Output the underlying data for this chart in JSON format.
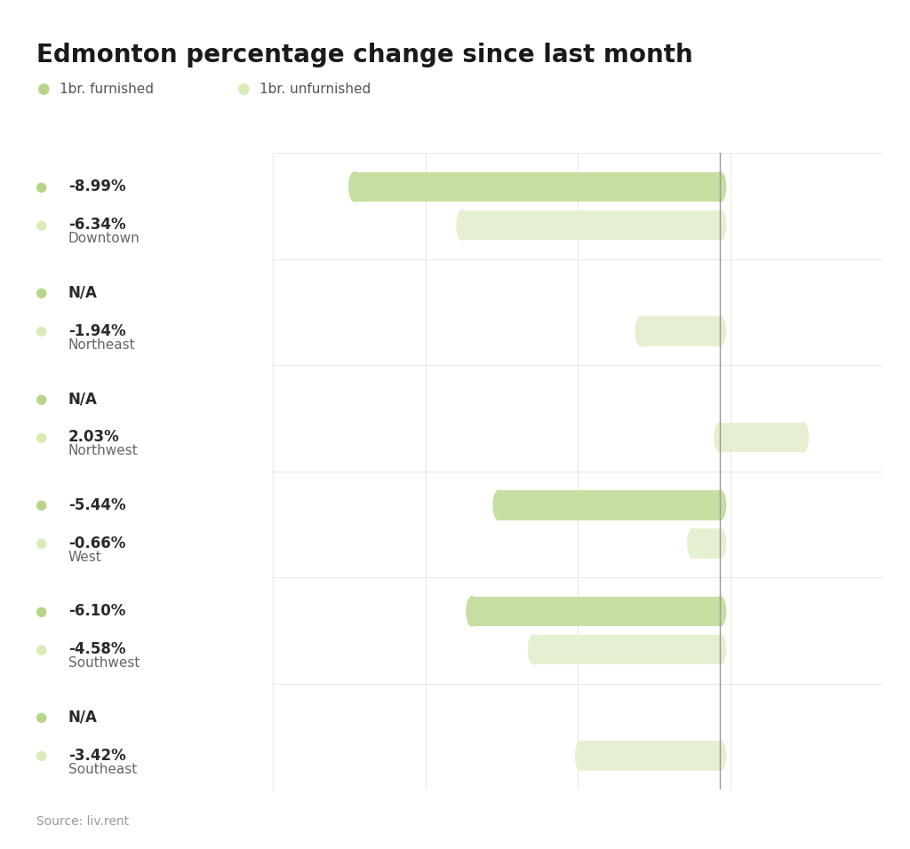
{
  "title": "Edmonton percentage change since last month",
  "source": "Source: liv.rent",
  "legend": [
    {
      "label": "1br. furnished",
      "color": "#b8d48a"
    },
    {
      "label": "1br. unfurnished",
      "color": "#e0ecc4"
    }
  ],
  "categories": [
    "Downtown",
    "Northeast",
    "Northwest",
    "West",
    "Southwest",
    "Southeast"
  ],
  "furnished": [
    -8.99,
    null,
    null,
    -5.44,
    -6.1,
    null
  ],
  "unfurnished": [
    -6.34,
    -1.94,
    2.03,
    -0.66,
    -4.58,
    -3.42
  ],
  "furnished_labels": [
    "-8.99%",
    "N/A",
    "N/A",
    "-5.44%",
    "-6.10%",
    "N/A"
  ],
  "unfurnished_labels": [
    "-6.34%",
    "-1.94%",
    "2.03%",
    "-0.66%",
    "-4.58%",
    "-3.42%"
  ],
  "bar_color_furnished": "#c5dfa0",
  "bar_color_unfurnished": "#e5f0d0",
  "background_color": "#ffffff",
  "grid_color": "#e8e8e8",
  "text_color_bold": "#2a2a2a",
  "text_color_category": "#666666",
  "text_color_source": "#999999",
  "dot_color_furnished": "#b8d48a",
  "dot_color_unfurnished": "#d8ecb8",
  "xlim": [
    -11,
    4
  ],
  "bar_height": 0.28,
  "bar_gap": 0.08
}
